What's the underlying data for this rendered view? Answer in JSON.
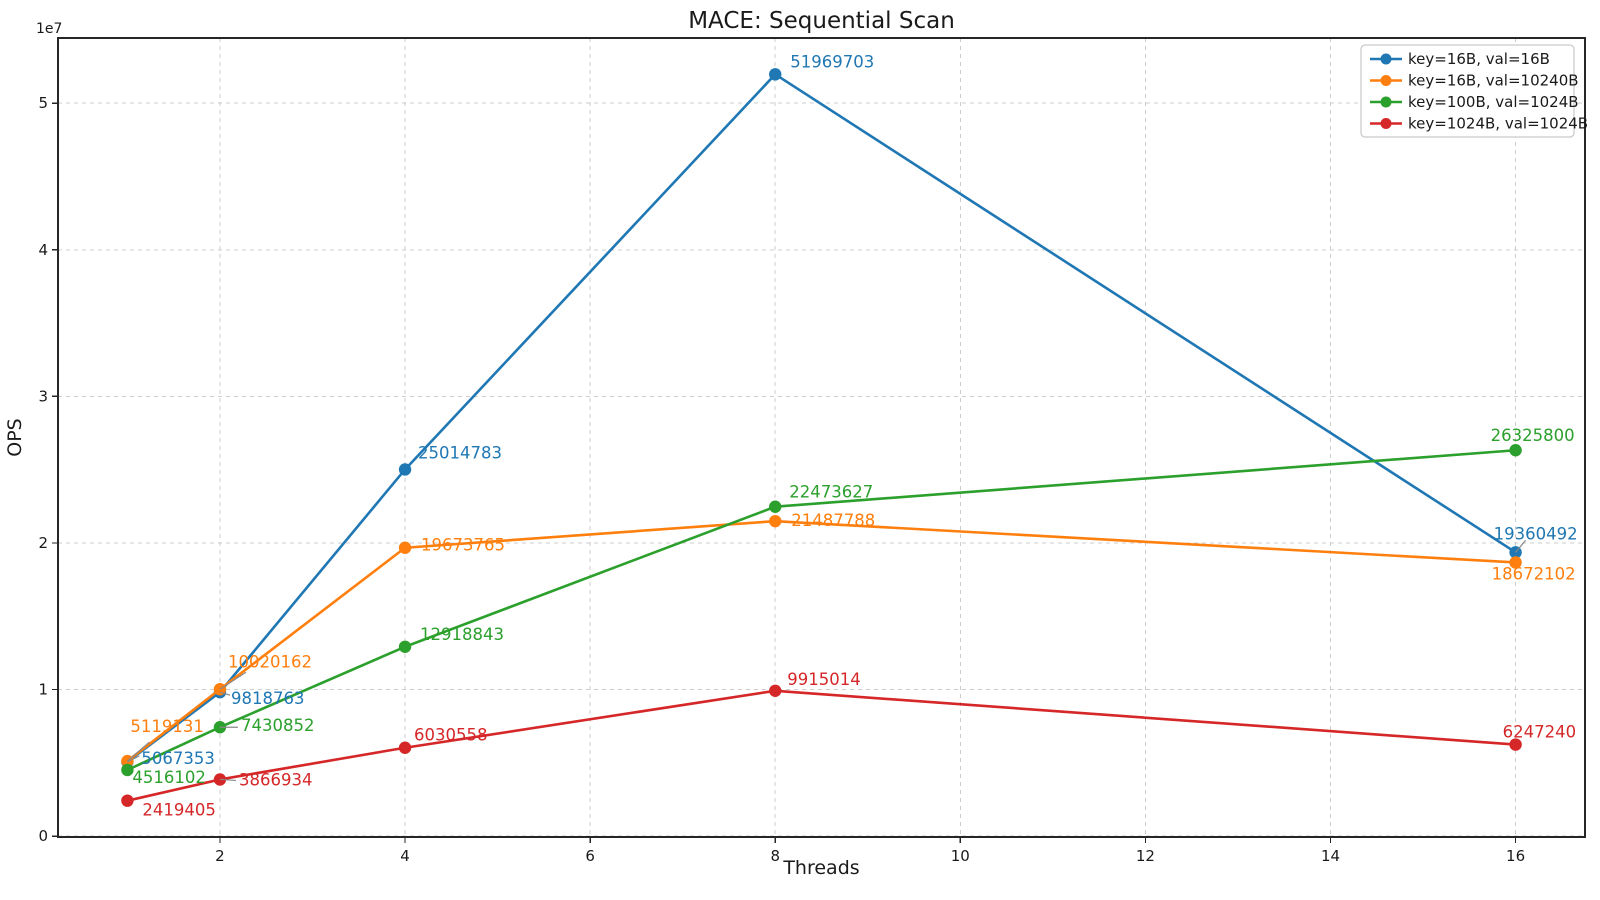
{
  "chart_data": {
    "type": "line",
    "title": "MACE: Sequential Scan",
    "xlabel": "Threads",
    "ylabel": "OPS",
    "y_offset_text": "1e7",
    "x": [
      1,
      2,
      4,
      8,
      16
    ],
    "xlim": [
      0.25,
      16.75
    ],
    "ylim": [
      -58109,
      54447218
    ],
    "grid": true,
    "legend_position": "upper right",
    "xticks": [
      {
        "value": 2,
        "label": "2"
      },
      {
        "value": 4,
        "label": "4"
      },
      {
        "value": 6,
        "label": "6"
      },
      {
        "value": 8,
        "label": "8"
      },
      {
        "value": 10,
        "label": "10"
      },
      {
        "value": 12,
        "label": "12"
      },
      {
        "value": 14,
        "label": "14"
      },
      {
        "value": 16,
        "label": "16"
      }
    ],
    "yticks": [
      {
        "value": 0,
        "label": "0"
      },
      {
        "value": 10000000,
        "label": "1"
      },
      {
        "value": 20000000,
        "label": "2"
      },
      {
        "value": 30000000,
        "label": "3"
      },
      {
        "value": 40000000,
        "label": "4"
      },
      {
        "value": 50000000,
        "label": "5"
      }
    ],
    "colors": {
      "background": "#ffffff",
      "grid": "#cccccc",
      "spine": "#262626",
      "text": "#1a1a1a",
      "leader": "#888888",
      "legend_border": "#c9c9c9"
    },
    "series": [
      {
        "name": "key=16B, val=16B",
        "color": "#1f77b4",
        "values": [
          5067353,
          9818763,
          25014783,
          51969703,
          19360492
        ],
        "labels": [
          {
            "dx": 14,
            "dy": 2,
            "leader": [
              12,
              -6
            ]
          },
          {
            "dx": 11,
            "dy": 12,
            "leader": [
              10,
              3
            ]
          },
          {
            "dx": 13,
            "dy": -11,
            "leader": null
          },
          {
            "dx": 15,
            "dy": -7,
            "leader": null
          },
          {
            "dx": -22,
            "dy": -13,
            "leader": [
              10,
              -12
            ]
          }
        ]
      },
      {
        "name": "key=16B, val=10240B",
        "color": "#ff7f0e",
        "values": [
          5119131,
          10020162,
          19673765,
          21487788,
          18672102
        ],
        "labels": [
          {
            "dx": 3,
            "dy": -29,
            "leader": [
              22,
              -19
            ]
          },
          {
            "dx": 8,
            "dy": -22,
            "leader": [
              26,
              -17
            ]
          },
          {
            "dx": 16,
            "dy": 3,
            "leader": null
          },
          {
            "dx": 16,
            "dy": 5,
            "leader": null
          },
          {
            "dx": -24,
            "dy": 17,
            "leader": null
          }
        ]
      },
      {
        "name": "key=100B, val=1024B",
        "color": "#2ca02c",
        "values": [
          4516102,
          7430852,
          12918843,
          22473627,
          26325800
        ],
        "labels": [
          {
            "dx": 5,
            "dy": 13,
            "leader": null
          },
          {
            "dx": 21,
            "dy": 4,
            "leader": [
              18,
              0
            ]
          },
          {
            "dx": 15,
            "dy": -7,
            "leader": null
          },
          {
            "dx": 14,
            "dy": -9,
            "leader": null
          },
          {
            "dx": -25,
            "dy": -9,
            "leader": null
          }
        ]
      },
      {
        "name": "key=1024B, val=1024B",
        "color": "#d62728",
        "values": [
          2419405,
          3866934,
          6030558,
          9915014,
          6247240
        ],
        "labels": [
          {
            "dx": 15,
            "dy": 15,
            "leader": null
          },
          {
            "dx": 19,
            "dy": 6,
            "leader": [
              16,
              1
            ]
          },
          {
            "dx": 9,
            "dy": -7,
            "leader": null
          },
          {
            "dx": 12,
            "dy": -6,
            "leader": null
          },
          {
            "dx": -13,
            "dy": -7,
            "leader": null
          }
        ]
      }
    ]
  }
}
